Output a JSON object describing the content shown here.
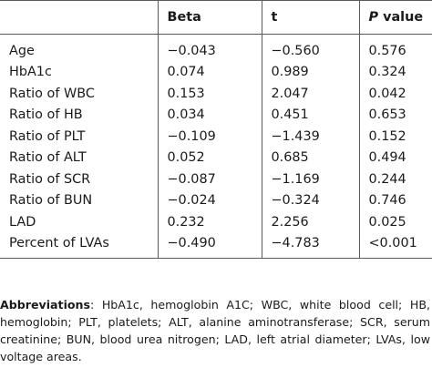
{
  "table": {
    "headers": [
      "",
      "Beta",
      "t",
      "P value"
    ],
    "header_p_italic": "P",
    "header_p_rest": " value",
    "rows": [
      [
        "Age",
        "−0.043",
        "−0.560",
        "0.576"
      ],
      [
        "HbA1c",
        "0.074",
        "0.989",
        "0.324"
      ],
      [
        "Ratio of WBC",
        "0.153",
        "2.047",
        "0.042"
      ],
      [
        "Ratio of HB",
        "0.034",
        "0.451",
        "0.653"
      ],
      [
        "Ratio of PLT",
        "−0.109",
        "−1.439",
        "0.152"
      ],
      [
        "Ratio of ALT",
        "0.052",
        "0.685",
        "0.494"
      ],
      [
        "Ratio of SCR",
        "−0.087",
        "−1.169",
        "0.244"
      ],
      [
        "Ratio of BUN",
        "−0.024",
        "−0.324",
        "0.746"
      ],
      [
        "LAD",
        "0.232",
        "2.256",
        "0.025"
      ],
      [
        "Percent of LVAs",
        "−0.490",
        "−4.783",
        "<0.001"
      ]
    ]
  },
  "footnote": {
    "label": "Abbreviations",
    "text": ": HbA1c, hemoglobin A1C; WBC, white blood cell; HB, hemoglobin; PLT, platelets; ALT, alanine aminotransferase; SCR, serum creatinine; BUN, blood urea nitrogen; LAD, left atrial diameter; LVAs, low voltage areas."
  }
}
